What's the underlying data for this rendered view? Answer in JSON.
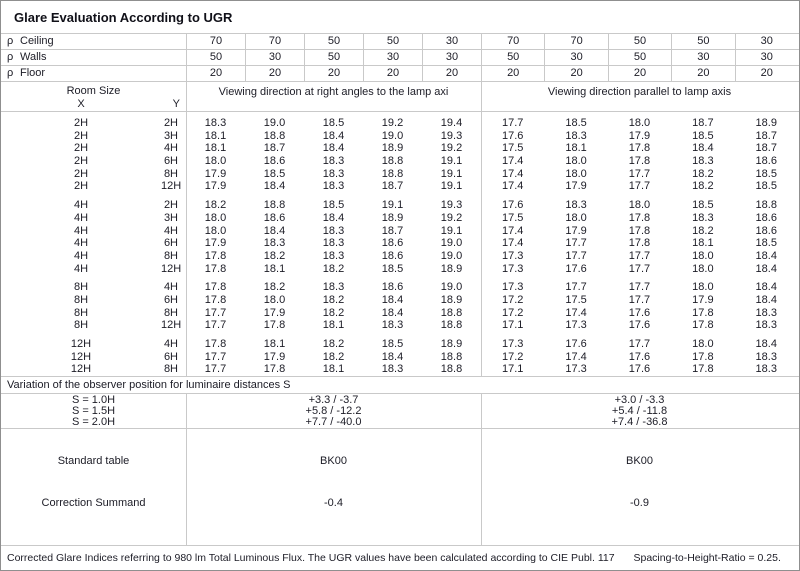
{
  "title": "Glare Evaluation According to UGR",
  "reflectances": {
    "rows": [
      {
        "symbol": "ρ",
        "label": "Ceiling",
        "values": [
          "70",
          "70",
          "50",
          "50",
          "30",
          "70",
          "70",
          "50",
          "50",
          "30"
        ]
      },
      {
        "symbol": "ρ",
        "label": "Walls",
        "values": [
          "50",
          "30",
          "50",
          "30",
          "30",
          "50",
          "30",
          "50",
          "30",
          "30"
        ]
      },
      {
        "symbol": "ρ",
        "label": "Floor",
        "values": [
          "20",
          "20",
          "20",
          "20",
          "20",
          "20",
          "20",
          "20",
          "20",
          "20"
        ]
      }
    ]
  },
  "header": {
    "room_size": "Room Size",
    "x": "X",
    "y": "Y",
    "right_angles": "Viewing direction at right angles to the lamp axi",
    "parallel": "Viewing direction parallel to lamp axis"
  },
  "ugr_groups": [
    {
      "rows": [
        {
          "x": "2H",
          "y": "2H",
          "values": [
            "18.3",
            "19.0",
            "18.5",
            "19.2",
            "19.4",
            "17.7",
            "18.5",
            "18.0",
            "18.7",
            "18.9"
          ]
        },
        {
          "x": "2H",
          "y": "3H",
          "values": [
            "18.1",
            "18.8",
            "18.4",
            "19.0",
            "19.3",
            "17.6",
            "18.3",
            "17.9",
            "18.5",
            "18.7"
          ]
        },
        {
          "x": "2H",
          "y": "4H",
          "values": [
            "18.1",
            "18.7",
            "18.4",
            "18.9",
            "19.2",
            "17.5",
            "18.1",
            "17.8",
            "18.4",
            "18.7"
          ]
        },
        {
          "x": "2H",
          "y": "6H",
          "values": [
            "18.0",
            "18.6",
            "18.3",
            "18.8",
            "19.1",
            "17.4",
            "18.0",
            "17.8",
            "18.3",
            "18.6"
          ]
        },
        {
          "x": "2H",
          "y": "8H",
          "values": [
            "17.9",
            "18.5",
            "18.3",
            "18.8",
            "19.1",
            "17.4",
            "18.0",
            "17.7",
            "18.2",
            "18.5"
          ]
        },
        {
          "x": "2H",
          "y": "12H",
          "values": [
            "17.9",
            "18.4",
            "18.3",
            "18.7",
            "19.1",
            "17.4",
            "17.9",
            "17.7",
            "18.2",
            "18.5"
          ]
        }
      ]
    },
    {
      "rows": [
        {
          "x": "4H",
          "y": "2H",
          "values": [
            "18.2",
            "18.8",
            "18.5",
            "19.1",
            "19.3",
            "17.6",
            "18.3",
            "18.0",
            "18.5",
            "18.8"
          ]
        },
        {
          "x": "4H",
          "y": "3H",
          "values": [
            "18.0",
            "18.6",
            "18.4",
            "18.9",
            "19.2",
            "17.5",
            "18.0",
            "17.8",
            "18.3",
            "18.6"
          ]
        },
        {
          "x": "4H",
          "y": "4H",
          "values": [
            "18.0",
            "18.4",
            "18.3",
            "18.7",
            "19.1",
            "17.4",
            "17.9",
            "17.8",
            "18.2",
            "18.6"
          ]
        },
        {
          "x": "4H",
          "y": "6H",
          "values": [
            "17.9",
            "18.3",
            "18.3",
            "18.6",
            "19.0",
            "17.4",
            "17.7",
            "17.8",
            "18.1",
            "18.5"
          ]
        },
        {
          "x": "4H",
          "y": "8H",
          "values": [
            "17.8",
            "18.2",
            "18.3",
            "18.6",
            "19.0",
            "17.3",
            "17.7",
            "17.7",
            "18.0",
            "18.4"
          ]
        },
        {
          "x": "4H",
          "y": "12H",
          "values": [
            "17.8",
            "18.1",
            "18.2",
            "18.5",
            "18.9",
            "17.3",
            "17.6",
            "17.7",
            "18.0",
            "18.4"
          ]
        }
      ]
    },
    {
      "rows": [
        {
          "x": "8H",
          "y": "4H",
          "values": [
            "17.8",
            "18.2",
            "18.3",
            "18.6",
            "19.0",
            "17.3",
            "17.7",
            "17.7",
            "18.0",
            "18.4"
          ]
        },
        {
          "x": "8H",
          "y": "6H",
          "values": [
            "17.8",
            "18.0",
            "18.2",
            "18.4",
            "18.9",
            "17.2",
            "17.5",
            "17.7",
            "17.9",
            "18.4"
          ]
        },
        {
          "x": "8H",
          "y": "8H",
          "values": [
            "17.7",
            "17.9",
            "18.2",
            "18.4",
            "18.8",
            "17.2",
            "17.4",
            "17.6",
            "17.8",
            "18.3"
          ]
        },
        {
          "x": "8H",
          "y": "12H",
          "values": [
            "17.7",
            "17.8",
            "18.1",
            "18.3",
            "18.8",
            "17.1",
            "17.3",
            "17.6",
            "17.8",
            "18.3"
          ]
        }
      ]
    },
    {
      "rows": [
        {
          "x": "12H",
          "y": "4H",
          "values": [
            "17.8",
            "18.1",
            "18.2",
            "18.5",
            "18.9",
            "17.3",
            "17.6",
            "17.7",
            "18.0",
            "18.4"
          ]
        },
        {
          "x": "12H",
          "y": "6H",
          "values": [
            "17.7",
            "17.9",
            "18.2",
            "18.4",
            "18.8",
            "17.2",
            "17.4",
            "17.6",
            "17.8",
            "18.3"
          ]
        },
        {
          "x": "12H",
          "y": "8H",
          "values": [
            "17.7",
            "17.8",
            "18.1",
            "18.3",
            "18.8",
            "17.1",
            "17.3",
            "17.6",
            "17.8",
            "18.3"
          ]
        }
      ]
    }
  ],
  "variation": {
    "label": "Variation of the observer position for luminaire distances S",
    "rows": [
      {
        "label": "S = 1.0H",
        "right_angles": "+3.3 / -3.7",
        "parallel": "+3.0 / -3.3"
      },
      {
        "label": "S = 1.5H",
        "right_angles": "+5.8 / -12.2",
        "parallel": "+5.4 / -11.8"
      },
      {
        "label": "S = 2.0H",
        "right_angles": "+7.7 / -40.0",
        "parallel": "+7.4 / -36.8"
      }
    ]
  },
  "summary": {
    "standard_table": {
      "label": "Standard table",
      "right_angles": "BK00",
      "parallel": "BK00"
    },
    "correction_summand": {
      "label": "Correction Summand",
      "right_angles": "-0.4",
      "parallel": "-0.9"
    }
  },
  "footer": {
    "note": "Corrected Glare Indices referring to 980 lm Total Luminous Flux. The UGR values have been calculated according to CIE Publ. 117",
    "ratio": "Spacing-to-Height-Ratio = 0.25."
  },
  "colors": {
    "grid": "#c9c9c9",
    "outer_border": "#8f8f8f",
    "text": "#1c1c26"
  }
}
